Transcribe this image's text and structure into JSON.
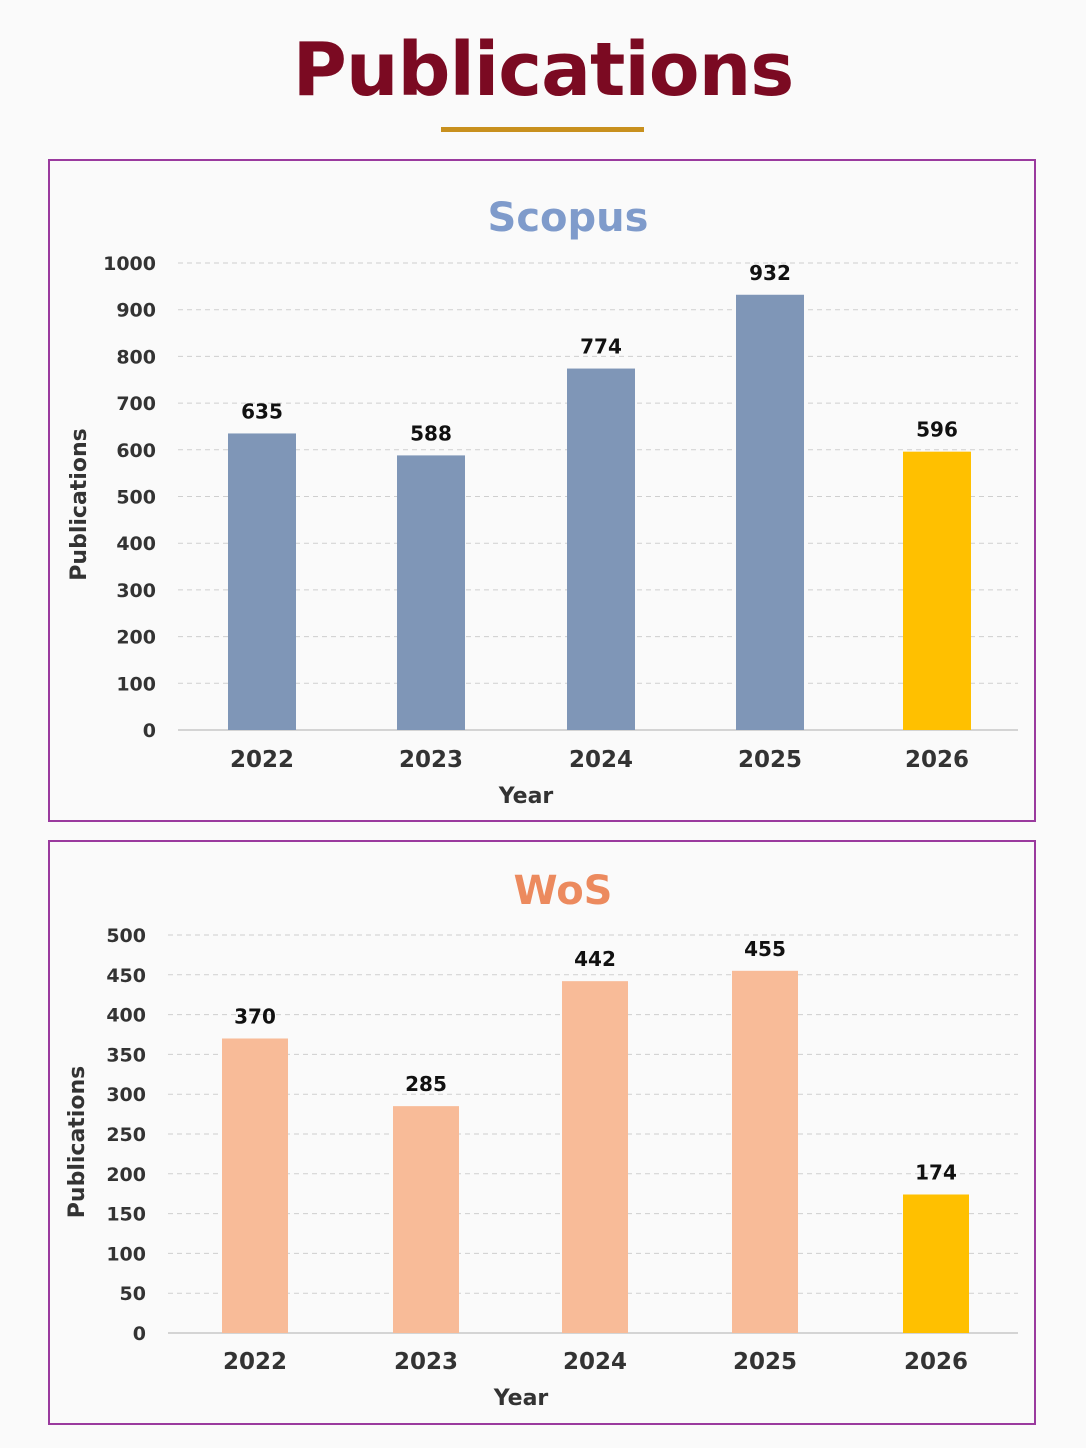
{
  "page": {
    "title": "Publications"
  },
  "colors": {
    "title": "#7b0a22",
    "underline": "#c8901e",
    "panel_border": "#9a3a9e",
    "highlight": "#ffc000"
  },
  "chart_data": [
    {
      "type": "bar",
      "title": "Scopus",
      "title_color": "#7f9bcb",
      "xlabel": "Year",
      "ylabel": "Publications",
      "categories": [
        "2022",
        "2023",
        "2024",
        "2025",
        "2026"
      ],
      "values": [
        635,
        588,
        774,
        932,
        596
      ],
      "data_labels": [
        "635",
        "588",
        "774",
        "932",
        "596"
      ],
      "bar_colors": [
        "#7f96b7",
        "#7f96b7",
        "#7f96b7",
        "#7f96b7",
        "#ffc000"
      ],
      "ylim": [
        0,
        1000
      ],
      "yticks": [
        0,
        100,
        200,
        300,
        400,
        500,
        600,
        700,
        800,
        900,
        1000
      ],
      "grid": true,
      "legend": "none"
    },
    {
      "type": "bar",
      "title": "WoS",
      "title_color": "#ec8a5e",
      "xlabel": "Year",
      "ylabel": "Publications",
      "categories": [
        "2022",
        "2023",
        "2024",
        "2025",
        "2026"
      ],
      "values": [
        370,
        285,
        442,
        455,
        174
      ],
      "data_labels": [
        "370",
        "285",
        "442",
        "455",
        "174"
      ],
      "bar_colors": [
        "#f8bb98",
        "#f8bb98",
        "#f8bb98",
        "#f8bb98",
        "#ffc000"
      ],
      "ylim": [
        0,
        500
      ],
      "yticks": [
        0,
        50,
        100,
        150,
        200,
        250,
        300,
        350,
        400,
        450,
        500
      ],
      "grid": true,
      "legend": "none"
    }
  ]
}
